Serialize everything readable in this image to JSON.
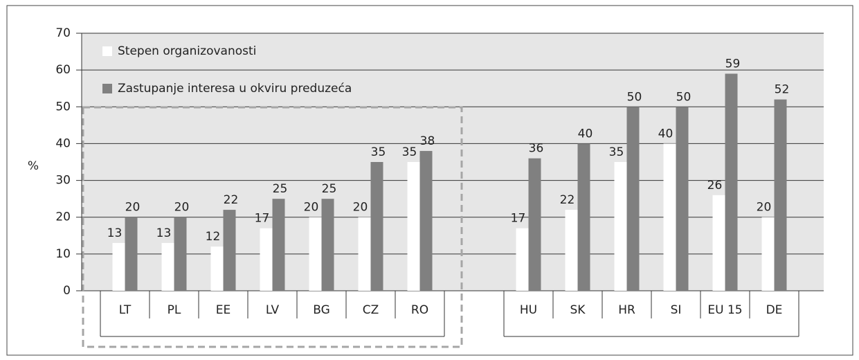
{
  "chart_data": {
    "type": "bar",
    "y_label": "%",
    "categories": [
      "LT",
      "PL",
      "EE",
      "LV",
      "BG",
      "CZ",
      "RO",
      null,
      "HU",
      "SK",
      "HR",
      "SI",
      "EU 15",
      "DE"
    ],
    "series": [
      {
        "name": "Stepen organizovanosti",
        "color": "#ffffff",
        "values": [
          13,
          13,
          12,
          17,
          20,
          20,
          35,
          null,
          17,
          22,
          35,
          40,
          26,
          20
        ]
      },
      {
        "name": "Zastupanje interesa u okviru preduzeća",
        "color": "#808080",
        "values": [
          20,
          20,
          22,
          25,
          25,
          35,
          38,
          null,
          36,
          40,
          50,
          50,
          59,
          52
        ]
      }
    ],
    "ylim": [
      0,
      70
    ],
    "yticks": [
      0,
      10,
      20,
      30,
      40,
      50,
      60,
      70
    ],
    "grid": true,
    "background": "#e6e6e6"
  }
}
